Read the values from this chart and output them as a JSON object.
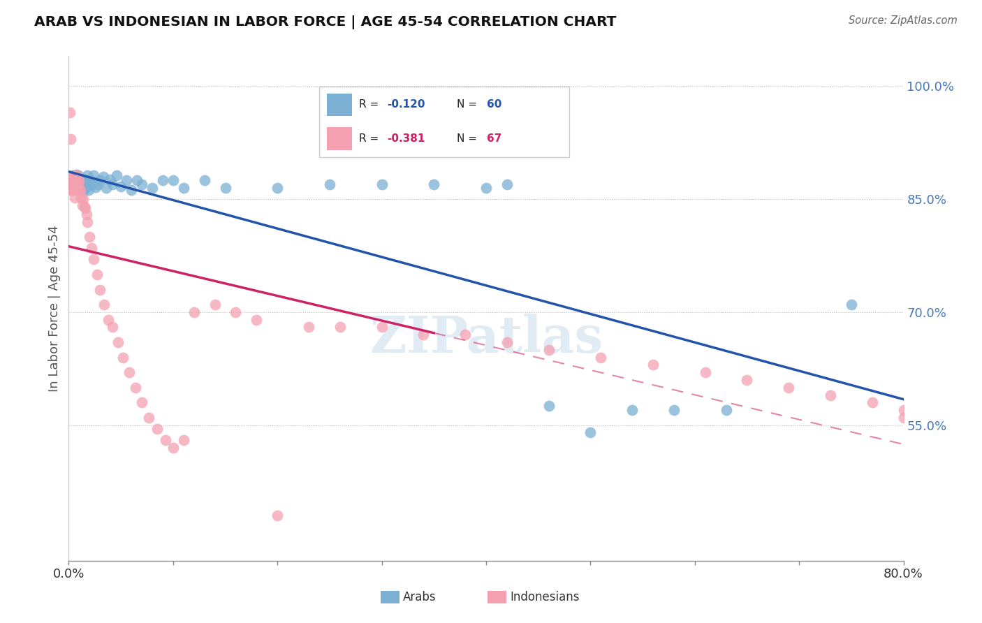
{
  "title": "ARAB VS INDONESIAN IN LABOR FORCE | AGE 45-54 CORRELATION CHART",
  "source": "Source: ZipAtlas.com",
  "ylabel": "In Labor Force | Age 45-54",
  "y_tick_labels": [
    "100.0%",
    "85.0%",
    "70.0%",
    "55.0%"
  ],
  "y_tick_vals": [
    1.0,
    0.85,
    0.7,
    0.55
  ],
  "legend_arab": "Arabs",
  "legend_indonesian": "Indonesians",
  "r_arab": -0.12,
  "n_arab": 60,
  "r_indonesian": -0.381,
  "n_indonesian": 67,
  "arab_color": "#7BAFD4",
  "indonesian_color": "#F4A0B0",
  "arab_line_color": "#2255AA",
  "indonesian_line_color": "#CC2266",
  "watermark": "ZIPatlas",
  "xlim": [
    0.0,
    0.8
  ],
  "ylim": [
    0.37,
    1.04
  ],
  "arab_x": [
    0.001,
    0.002,
    0.003,
    0.004,
    0.004,
    0.005,
    0.005,
    0.006,
    0.006,
    0.007,
    0.007,
    0.008,
    0.008,
    0.009,
    0.009,
    0.01,
    0.01,
    0.011,
    0.012,
    0.013,
    0.014,
    0.015,
    0.016,
    0.017,
    0.018,
    0.019,
    0.02,
    0.022,
    0.024,
    0.026,
    0.028,
    0.03,
    0.033,
    0.036,
    0.039,
    0.042,
    0.046,
    0.05,
    0.055,
    0.06,
    0.065,
    0.07,
    0.08,
    0.09,
    0.1,
    0.11,
    0.13,
    0.15,
    0.2,
    0.25,
    0.3,
    0.35,
    0.4,
    0.42,
    0.46,
    0.5,
    0.54,
    0.58,
    0.63,
    0.75
  ],
  "arab_y": [
    0.875,
    0.865,
    0.87,
    0.862,
    0.882,
    0.866,
    0.875,
    0.872,
    0.865,
    0.876,
    0.883,
    0.862,
    0.875,
    0.87,
    0.882,
    0.866,
    0.875,
    0.872,
    0.865,
    0.876,
    0.86,
    0.875,
    0.872,
    0.866,
    0.882,
    0.862,
    0.875,
    0.87,
    0.882,
    0.866,
    0.87,
    0.875,
    0.88,
    0.865,
    0.876,
    0.87,
    0.882,
    0.867,
    0.875,
    0.862,
    0.875,
    0.87,
    0.865,
    0.875,
    0.875,
    0.865,
    0.875,
    0.865,
    0.865,
    0.87,
    0.87,
    0.87,
    0.865,
    0.87,
    0.576,
    0.54,
    0.57,
    0.57,
    0.57,
    0.71
  ],
  "indonesian_x": [
    0.001,
    0.001,
    0.002,
    0.002,
    0.003,
    0.003,
    0.004,
    0.004,
    0.005,
    0.005,
    0.006,
    0.006,
    0.007,
    0.007,
    0.008,
    0.008,
    0.009,
    0.009,
    0.01,
    0.01,
    0.011,
    0.012,
    0.013,
    0.014,
    0.015,
    0.016,
    0.017,
    0.018,
    0.02,
    0.022,
    0.024,
    0.027,
    0.03,
    0.034,
    0.038,
    0.042,
    0.047,
    0.052,
    0.058,
    0.064,
    0.07,
    0.077,
    0.085,
    0.093,
    0.1,
    0.11,
    0.12,
    0.14,
    0.16,
    0.18,
    0.2,
    0.23,
    0.26,
    0.3,
    0.34,
    0.38,
    0.42,
    0.46,
    0.51,
    0.56,
    0.61,
    0.65,
    0.69,
    0.73,
    0.77,
    0.8,
    0.8
  ],
  "indonesian_y": [
    0.965,
    0.872,
    0.93,
    0.862,
    0.875,
    0.862,
    0.88,
    0.862,
    0.872,
    0.862,
    0.882,
    0.852,
    0.872,
    0.862,
    0.876,
    0.882,
    0.862,
    0.876,
    0.862,
    0.872,
    0.862,
    0.852,
    0.842,
    0.85,
    0.84,
    0.838,
    0.83,
    0.82,
    0.8,
    0.785,
    0.77,
    0.75,
    0.73,
    0.71,
    0.69,
    0.68,
    0.66,
    0.64,
    0.62,
    0.6,
    0.58,
    0.56,
    0.545,
    0.53,
    0.52,
    0.53,
    0.7,
    0.71,
    0.7,
    0.69,
    0.43,
    0.68,
    0.68,
    0.68,
    0.67,
    0.67,
    0.66,
    0.65,
    0.64,
    0.63,
    0.62,
    0.61,
    0.6,
    0.59,
    0.58,
    0.57,
    0.56
  ]
}
